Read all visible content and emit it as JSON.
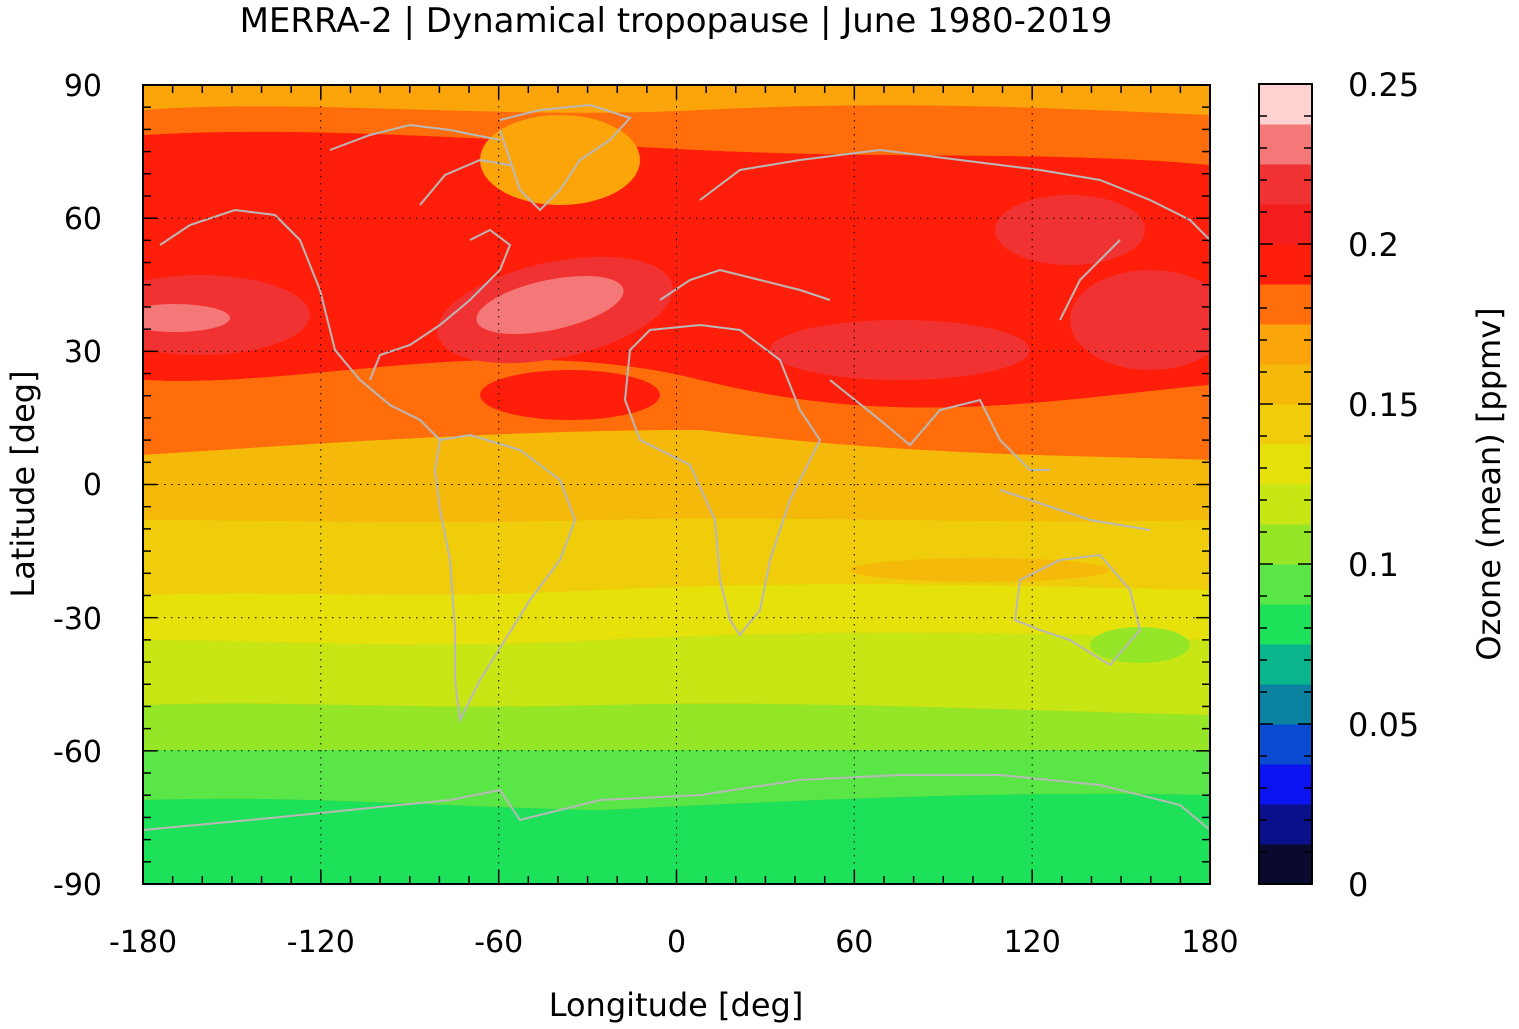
{
  "chart_data": {
    "type": "heatmap",
    "title": "MERRA-2 | Dynamical tropopause | June 1980-2019",
    "xlabel": "Longitude [deg]",
    "ylabel": "Latitude [deg]",
    "xlim": [
      -180,
      180
    ],
    "ylim": [
      -90,
      90
    ],
    "xticks": [
      -180,
      -120,
      -60,
      0,
      60,
      120,
      180
    ],
    "yticks": [
      90,
      60,
      30,
      0,
      -30,
      -60,
      -90
    ],
    "grid": true,
    "colorbar": {
      "label": "Ozone (mean) [ppmv]",
      "range": [
        0,
        0.25
      ],
      "ticks": [
        "0.25",
        "0.2",
        "0.15",
        "0.1",
        "0.05",
        "0"
      ],
      "tick_values": [
        0.25,
        0.2,
        0.15,
        0.1,
        0.05,
        0
      ],
      "levels": [
        0,
        0.0125,
        0.025,
        0.0375,
        0.05,
        0.0625,
        0.075,
        0.0875,
        0.1,
        0.1125,
        0.125,
        0.1375,
        0.15,
        0.1625,
        0.175,
        0.1875,
        0.2,
        0.2125,
        0.225,
        0.2375,
        0.25
      ],
      "colors": [
        "#0a0a2e",
        "#0a0f8a",
        "#0a14f0",
        "#0a4bd2",
        "#0a82a0",
        "#0ab48c",
        "#1ee15a",
        "#5ae646",
        "#96e628",
        "#c8e614",
        "#e6e10a",
        "#f0cd0a",
        "#f5b90a",
        "#fca50a",
        "#ff6e0a",
        "#ff1e0a",
        "#f51e1e",
        "#f03232",
        "#f57878",
        "#ffd2d2"
      ]
    },
    "mean_ozone_by_latitude": {
      "lat": [
        -90,
        -80,
        -70,
        -60,
        -50,
        -40,
        -30,
        -20,
        -10,
        0,
        10,
        20,
        30,
        40,
        50,
        60,
        70,
        80,
        90
      ],
      "value": [
        0.085,
        0.085,
        0.092,
        0.098,
        0.104,
        0.112,
        0.125,
        0.138,
        0.142,
        0.145,
        0.168,
        0.185,
        0.205,
        0.212,
        0.205,
        0.2,
        0.19,
        0.175,
        0.165
      ]
    },
    "notable_maxima": [
      {
        "lon": -40,
        "lat": 38,
        "value": 0.235
      },
      {
        "lon": -170,
        "lat": 38,
        "value": 0.235
      }
    ],
    "overlay": "coastlines"
  }
}
